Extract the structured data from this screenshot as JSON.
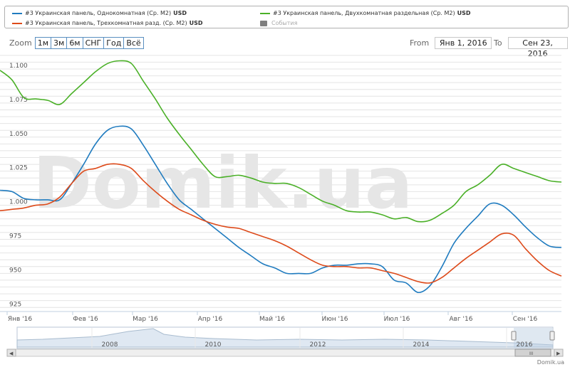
{
  "legend": {
    "items": [
      {
        "label": "#3 Украинская панель, Однокомнатная (Ср. М2)",
        "unit": "USD",
        "color": "#1f7bbf"
      },
      {
        "label": "#3 Украинская панель, Двухкомнатная раздельная (Ср. М2)",
        "unit": "USD",
        "color": "#4ab027"
      },
      {
        "label": "#3 Украинская панель, Трехкомнатная разд. (Ср. М2)",
        "unit": "USD",
        "color": "#dd4a1a"
      },
      {
        "label": "События",
        "unit": "",
        "color": "#7f7f7f"
      }
    ]
  },
  "zoom": {
    "label": "Zoom",
    "buttons": [
      "1м",
      "3м",
      "6м",
      "СНГ",
      "Год",
      "Всё"
    ]
  },
  "range": {
    "from_label": "From",
    "from_value": "Янв 1, 2016",
    "to_label": "To",
    "to_value": "Сен 23, 2016"
  },
  "watermark": "Domik.ua",
  "credit": "Domik.ua",
  "navigator": {
    "year_labels": [
      "2008",
      "2010",
      "2012",
      "2014",
      "2016"
    ],
    "scroll_left": "◀",
    "scroll_right": "▶",
    "scroll_thumb": "III"
  },
  "chart_data": {
    "type": "line",
    "x_axis_labels": [
      "Янв '16",
      "Фев '16",
      "Мар '16",
      "Апр '16",
      "Май '16",
      "Июн '16",
      "Июл '16",
      "Авг '16",
      "Сен '16"
    ],
    "y_tick_labels": [
      "1.100",
      "1.075",
      "1.050",
      "1.025",
      "1.000",
      "975",
      "950",
      "925"
    ],
    "ylim": [
      922,
      1112
    ],
    "grid": true,
    "legend_position": "top",
    "series": [
      {
        "name": "#3 Украинская панель, Однокомнатная (Ср. М2)",
        "color": "#1f7bbf",
        "values": [
          1011,
          1010,
          1005,
          1004,
          1004,
          1004,
          1016,
          1030,
          1045,
          1055,
          1058,
          1056,
          1044,
          1030,
          1016,
          1004,
          997,
          990,
          983,
          976,
          969,
          963,
          957,
          954,
          950,
          950,
          950,
          954,
          956,
          956,
          957,
          957,
          955,
          945,
          943,
          936,
          941,
          955,
          972,
          983,
          992,
          1001,
          1000,
          993,
          984,
          976,
          970,
          969
        ]
      },
      {
        "name": "#3 Украинская панель, Двухкомнатная раздельная (Ср. М2)",
        "color": "#4ab027",
        "values": [
          1099,
          1092,
          1079,
          1078,
          1077,
          1074,
          1082,
          1090,
          1098,
          1104,
          1106,
          1104,
          1091,
          1078,
          1064,
          1052,
          1041,
          1030,
          1021,
          1021,
          1022,
          1020,
          1017,
          1016,
          1016,
          1013,
          1008,
          1003,
          1000,
          996,
          995,
          995,
          993,
          990,
          991,
          988,
          989,
          994,
          1000,
          1010,
          1015,
          1022,
          1030,
          1027,
          1024,
          1021,
          1018,
          1017
        ]
      },
      {
        "name": "#3 Украинская панель, Трехкомнатная разд. (Ср. М2)",
        "color": "#dd4a1a",
        "values": [
          996,
          997,
          998,
          1000,
          1001,
          1006,
          1016,
          1025,
          1027,
          1030,
          1030,
          1027,
          1018,
          1010,
          1003,
          997,
          993,
          989,
          986,
          984,
          983,
          980,
          977,
          974,
          970,
          965,
          960,
          956,
          955,
          955,
          954,
          954,
          952,
          950,
          947,
          944,
          943,
          947,
          954,
          961,
          967,
          973,
          979,
          978,
          968,
          959,
          952,
          948
        ]
      }
    ],
    "navigator_years": [
      "2008",
      "2010",
      "2012",
      "2014",
      "2016"
    ]
  }
}
